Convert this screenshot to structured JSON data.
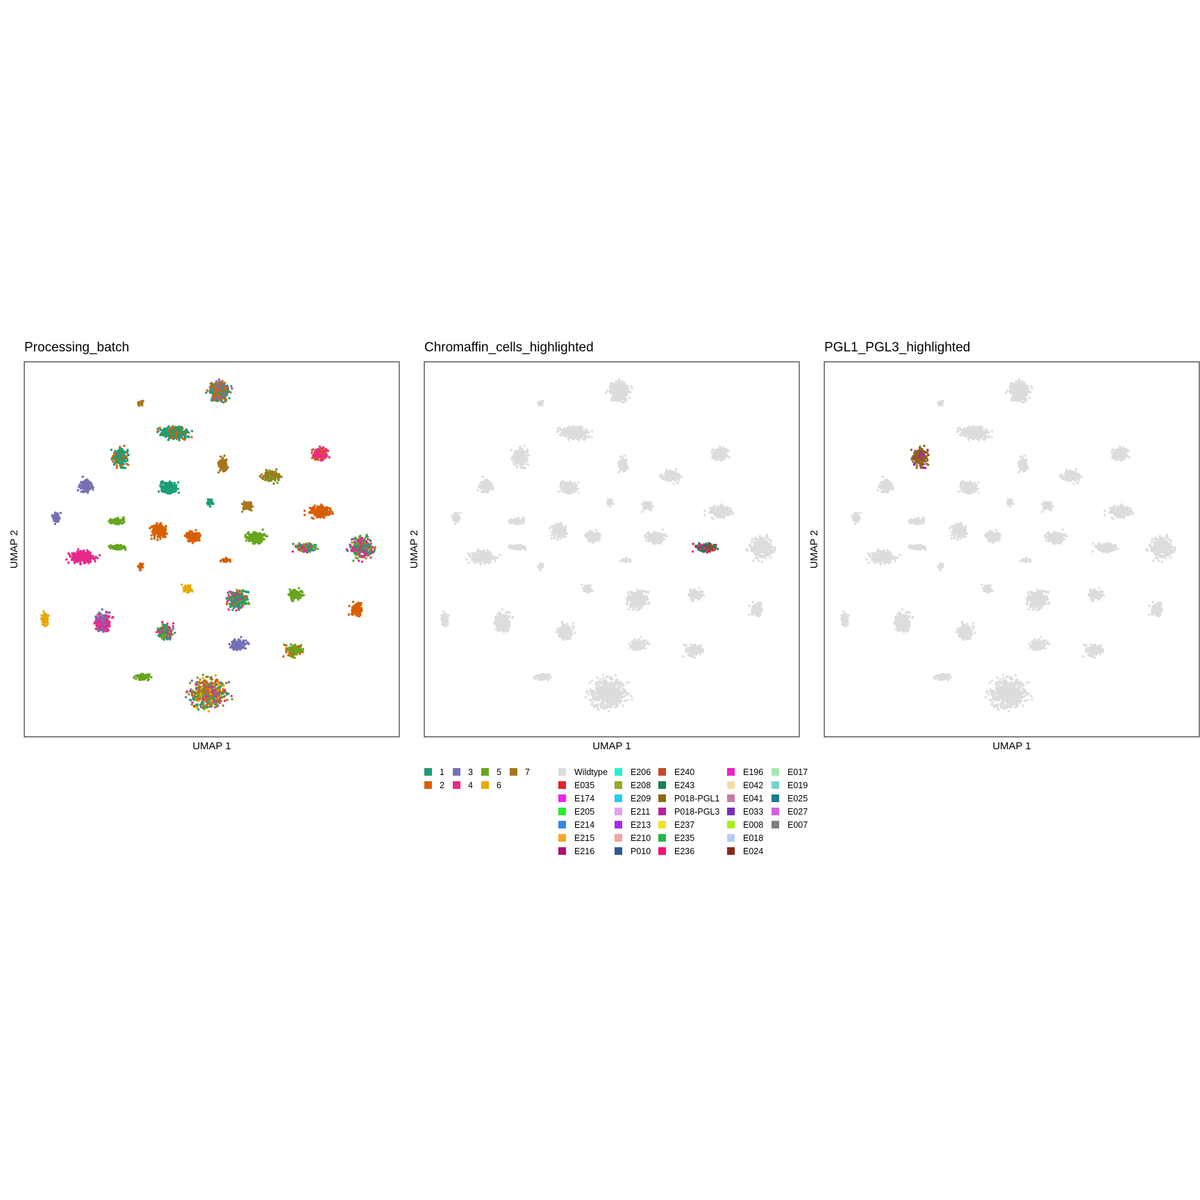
{
  "panels": [
    {
      "id": "processing_batch",
      "title": "Processing_batch",
      "xlabel": "UMAP 1",
      "ylabel": "UMAP 2",
      "mode": "batch"
    },
    {
      "id": "chromaffin",
      "title": "Chromaffin_cells_highlighted",
      "xlabel": "UMAP 1",
      "ylabel": "UMAP 2",
      "mode": "chromaffin"
    },
    {
      "id": "pgl",
      "title": "PGL1_PGL3_highlighted",
      "xlabel": "UMAP 1",
      "ylabel": "UMAP 2",
      "mode": "pgl"
    }
  ],
  "colors": {
    "background_cells": "#dcdcdc",
    "batch": {
      "1": "#1b9e77",
      "2": "#d95f02",
      "3": "#7570b3",
      "4": "#e7298a",
      "5": "#66a61e",
      "6": "#e6ab02",
      "7": "#a6761d"
    }
  },
  "chart_data": {
    "type": "scatter",
    "x_axis": "UMAP 1",
    "y_axis": "UMAP 2",
    "xlim": [
      0,
      100
    ],
    "ylim": [
      0,
      100
    ],
    "grid": false,
    "clusters": [
      {
        "x": 52,
        "y": 92,
        "rx": 4.2,
        "ry": 4.0,
        "mix": [
          "3",
          "2",
          "1",
          "7"
        ],
        "pts": 420
      },
      {
        "x": 31,
        "y": 89,
        "rx": 1.4,
        "ry": 0.9,
        "mix": [
          "7"
        ],
        "pts": 40
      },
      {
        "x": 40,
        "y": 81,
        "rx": 6.0,
        "ry": 2.6,
        "mix": [
          "1",
          "1",
          "1",
          "2"
        ],
        "pts": 380
      },
      {
        "x": 25.5,
        "y": 74.5,
        "rx": 3.2,
        "ry": 3.8,
        "mix": [
          "1",
          "2",
          "1"
        ],
        "pts": 220
      },
      {
        "x": 79,
        "y": 75.5,
        "rx": 3.2,
        "ry": 2.6,
        "mix": [
          "4",
          "4",
          "2"
        ],
        "pts": 200
      },
      {
        "x": 53,
        "y": 72.5,
        "rx": 2.0,
        "ry": 3.0,
        "mix": [
          "7"
        ],
        "pts": 130
      },
      {
        "x": 66,
        "y": 69.5,
        "rx": 3.8,
        "ry": 2.4,
        "mix": [
          "7",
          "7",
          "5"
        ],
        "pts": 170
      },
      {
        "x": 16.5,
        "y": 67,
        "rx": 3.0,
        "ry": 2.7,
        "mix": [
          "3"
        ],
        "pts": 160
      },
      {
        "x": 38.5,
        "y": 66.5,
        "rx": 3.6,
        "ry": 2.6,
        "mix": [
          "1"
        ],
        "pts": 170
      },
      {
        "x": 49.5,
        "y": 62.5,
        "rx": 1.2,
        "ry": 1.6,
        "mix": [
          "1"
        ],
        "pts": 40
      },
      {
        "x": 59.5,
        "y": 61.5,
        "rx": 2.2,
        "ry": 1.8,
        "mix": [
          "7"
        ],
        "pts": 80
      },
      {
        "x": 79,
        "y": 60,
        "rx": 5.0,
        "ry": 2.4,
        "mix": [
          "2"
        ],
        "pts": 230
      },
      {
        "x": 8.5,
        "y": 58.5,
        "rx": 1.6,
        "ry": 2.0,
        "mix": [
          "3"
        ],
        "pts": 70
      },
      {
        "x": 24.5,
        "y": 57.5,
        "rx": 3.0,
        "ry": 1.3,
        "mix": [
          "5"
        ],
        "pts": 90
      },
      {
        "x": 36,
        "y": 55,
        "rx": 3.4,
        "ry": 3.0,
        "mix": [
          "2"
        ],
        "pts": 170
      },
      {
        "x": 45,
        "y": 53.5,
        "rx": 3.0,
        "ry": 2.3,
        "mix": [
          "2"
        ],
        "pts": 140
      },
      {
        "x": 61.5,
        "y": 53,
        "rx": 4.0,
        "ry": 2.4,
        "mix": [
          "5"
        ],
        "pts": 180
      },
      {
        "x": 75,
        "y": 50.5,
        "rx": 4.2,
        "ry": 1.6,
        "mix": [
          "5",
          "5",
          "4",
          "1"
        ],
        "pts": 180
      },
      {
        "x": 15.5,
        "y": 48,
        "rx": 5.5,
        "ry": 2.6,
        "mix": [
          "4"
        ],
        "pts": 250
      },
      {
        "x": 25,
        "y": 50.5,
        "rx": 3.5,
        "ry": 1.2,
        "mix": [
          "5"
        ],
        "pts": 80
      },
      {
        "x": 90,
        "y": 50.5,
        "rx": 5.0,
        "ry": 4.8,
        "mix": [
          "4",
          "4",
          "1",
          "5"
        ],
        "pts": 300
      },
      {
        "x": 31,
        "y": 45.5,
        "rx": 1.3,
        "ry": 1.3,
        "mix": [
          "2"
        ],
        "pts": 35
      },
      {
        "x": 54,
        "y": 47,
        "rx": 2.0,
        "ry": 0.8,
        "mix": [
          "2"
        ],
        "pts": 30
      },
      {
        "x": 43.5,
        "y": 39.5,
        "rx": 2.0,
        "ry": 1.6,
        "mix": [
          "6"
        ],
        "pts": 70
      },
      {
        "x": 57,
        "y": 36.5,
        "rx": 4.2,
        "ry": 3.8,
        "mix": [
          "1",
          "2",
          "4",
          "5",
          "1"
        ],
        "pts": 330
      },
      {
        "x": 72.5,
        "y": 38,
        "rx": 3.0,
        "ry": 2.2,
        "mix": [
          "5"
        ],
        "pts": 110
      },
      {
        "x": 5.5,
        "y": 31.5,
        "rx": 1.6,
        "ry": 2.6,
        "mix": [
          "6"
        ],
        "pts": 80
      },
      {
        "x": 21,
        "y": 30.5,
        "rx": 3.3,
        "ry": 4.2,
        "mix": [
          "3",
          "4",
          "4"
        ],
        "pts": 260
      },
      {
        "x": 37.5,
        "y": 28,
        "rx": 3.0,
        "ry": 3.4,
        "mix": [
          "1",
          "5",
          "4"
        ],
        "pts": 190
      },
      {
        "x": 88.5,
        "y": 34,
        "rx": 2.4,
        "ry": 2.8,
        "mix": [
          "2"
        ],
        "pts": 120
      },
      {
        "x": 57,
        "y": 24.5,
        "rx": 3.3,
        "ry": 2.4,
        "mix": [
          "3"
        ],
        "pts": 130
      },
      {
        "x": 72,
        "y": 23,
        "rx": 3.5,
        "ry": 2.3,
        "mix": [
          "5",
          "2",
          "5"
        ],
        "pts": 140
      },
      {
        "x": 31.5,
        "y": 16,
        "rx": 3.4,
        "ry": 1.2,
        "mix": [
          "5"
        ],
        "pts": 80
      },
      {
        "x": 49,
        "y": 11.5,
        "rx": 7.5,
        "ry": 6.0,
        "mix": [
          "2",
          "5",
          "1",
          "3",
          "4",
          "7",
          "6"
        ],
        "pts": 600
      }
    ],
    "chromaffin_cluster_index": 17,
    "chromaffin_colors": [
      "#1b7f4f",
      "#1b7f4f",
      "#1b7f4f",
      "#e7298a",
      "#dd2222"
    ],
    "pgl_cluster_index": 3,
    "pgl_colors": [
      "#8b6914",
      "#8b6914",
      "#8b6914",
      "#b41fa6"
    ]
  },
  "legend_batch": {
    "columns": [
      [
        "1",
        "2"
      ],
      [
        "3",
        "4"
      ],
      [
        "5",
        "6"
      ],
      [
        "7"
      ]
    ]
  },
  "legend_samples": {
    "columns": [
      [
        {
          "label": "Wildtype",
          "color": "#dcdcdc"
        },
        {
          "label": "E035",
          "color": "#e8202a"
        },
        {
          "label": "E174",
          "color": "#f220f2"
        },
        {
          "label": "E205",
          "color": "#22ee33"
        },
        {
          "label": "E214",
          "color": "#3388ee"
        },
        {
          "label": "E215",
          "color": "#f5a623"
        },
        {
          "label": "E216",
          "color": "#b5106b"
        }
      ],
      [
        {
          "label": "E206",
          "color": "#22f2cc"
        },
        {
          "label": "E208",
          "color": "#9aa822"
        },
        {
          "label": "E209",
          "color": "#22ccf2"
        },
        {
          "label": "E211",
          "color": "#e0a3ee"
        },
        {
          "label": "E213",
          "color": "#a62af2"
        },
        {
          "label": "E210",
          "color": "#f4a3a3"
        },
        {
          "label": "P010",
          "color": "#2e5a99"
        }
      ],
      [
        {
          "label": "E240",
          "color": "#c84a22"
        },
        {
          "label": "E243",
          "color": "#1b7f4f"
        },
        {
          "label": "P018-PGL1",
          "color": "#8b6914"
        },
        {
          "label": "P018-PGL3",
          "color": "#b41fa6"
        },
        {
          "label": "E237",
          "color": "#f5e022"
        },
        {
          "label": "E235",
          "color": "#22b84a"
        },
        {
          "label": "E236",
          "color": "#f21177"
        }
      ],
      [
        {
          "label": "E196",
          "color": "#f21fc6"
        },
        {
          "label": "E042",
          "color": "#f4dca8"
        },
        {
          "label": "E041",
          "color": "#c87aa8"
        },
        {
          "label": "E033",
          "color": "#7a2ab8"
        },
        {
          "label": "E008",
          "color": "#a8f211"
        },
        {
          "label": "E018",
          "color": "#b8ccf4"
        },
        {
          "label": "E024",
          "color": "#8b2a1a"
        }
      ],
      [
        {
          "label": "E017",
          "color": "#a8e8b0"
        },
        {
          "label": "E019",
          "color": "#7ad2c6"
        },
        {
          "label": "E025",
          "color": "#1f7a8b"
        },
        {
          "label": "E027",
          "color": "#d65fe0"
        },
        {
          "label": "E007",
          "color": "#7f7f7f"
        }
      ]
    ]
  }
}
